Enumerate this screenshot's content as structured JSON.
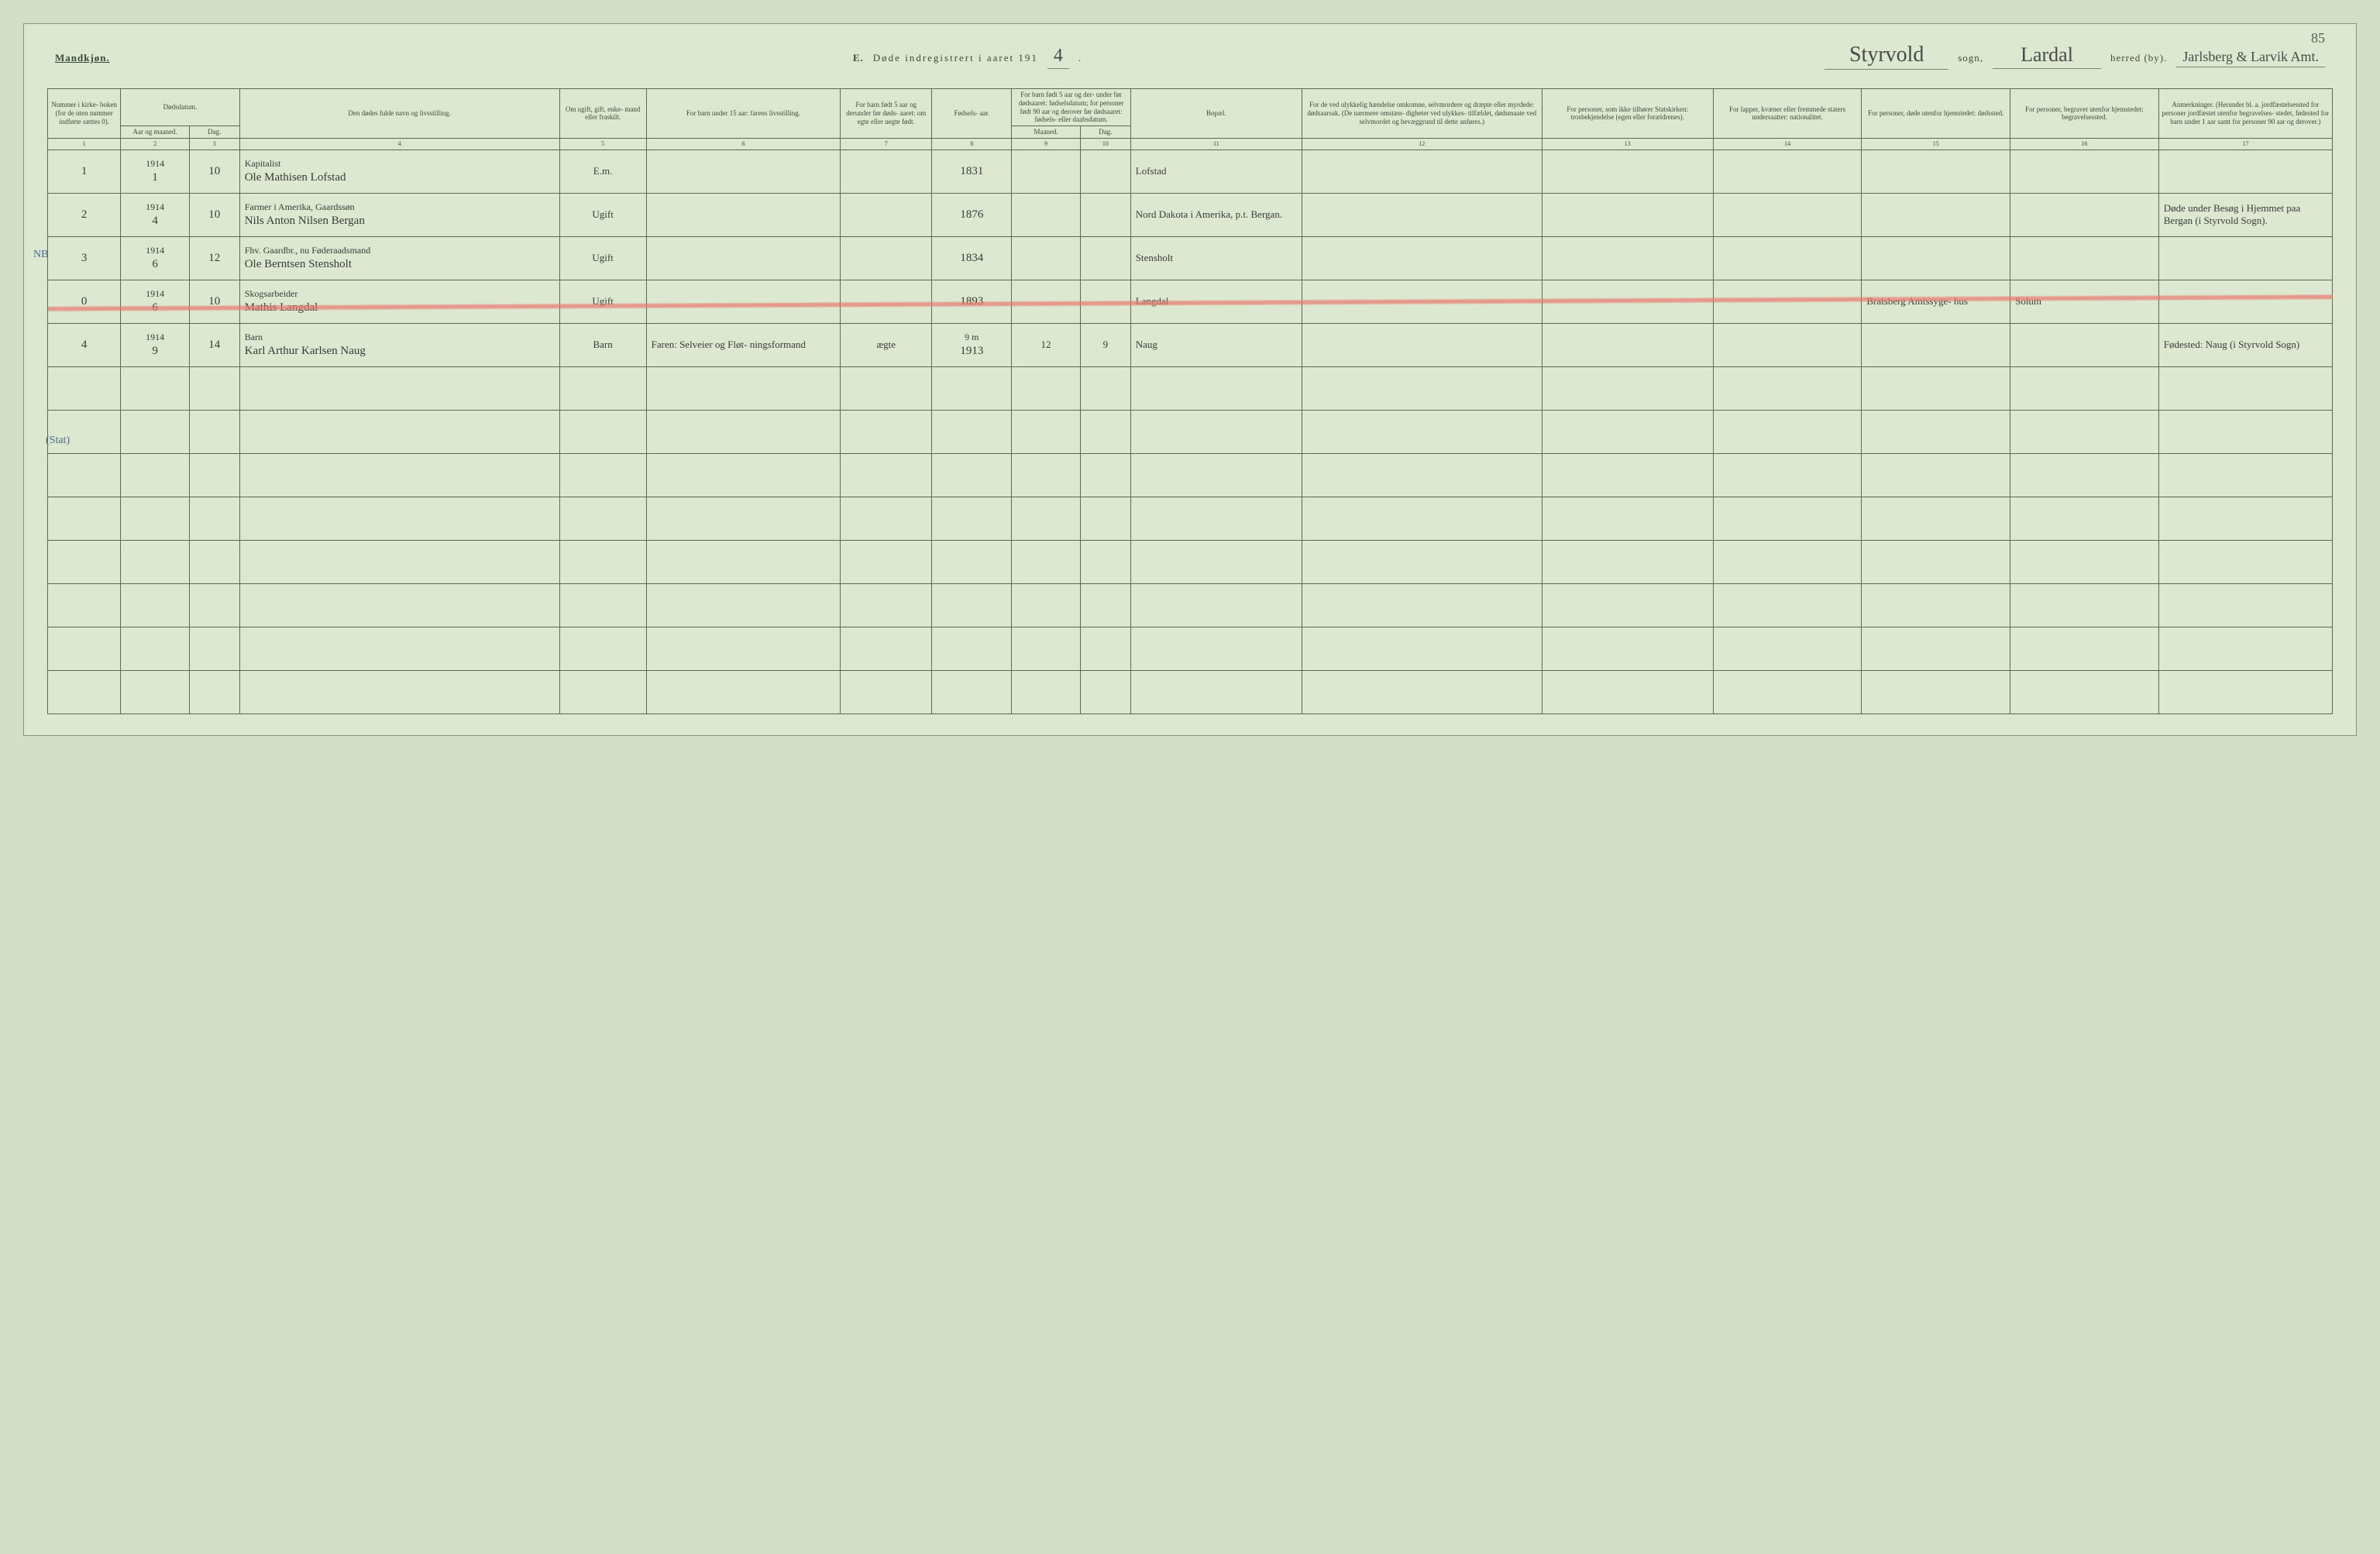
{
  "page_number_top": "85",
  "header": {
    "gender_label": "Mandkjøn.",
    "section_letter": "E.",
    "title_prefix": "Døde indregistrert i aaret 191",
    "year_suffix": "4",
    "title_period": ".",
    "sogn_value": "Styrvold",
    "sogn_label": "sogn,",
    "herred_value": "Lardal",
    "herred_label": "herred (by).",
    "amt_value": "Jarlsberg & Larvik Amt."
  },
  "columns": {
    "c1": "Nummer i kirke- boken (for de uten nummer indførte sættes 0).",
    "c2_group": "Dødsdatum.",
    "c2a": "Aar og maaned.",
    "c2b": "Dag.",
    "c3": "Den dødes fulde navn og livsstilling.",
    "c4": "Om ugift, gift, enke- mand eller fraskilt.",
    "c5": "For barn under 15 aar: farens livsstilling.",
    "c6": "For barn født 5 aar og derunder før døds- aaret: om egte eller uegte født.",
    "c7": "Fødsels- aar.",
    "c8_group": "For barn født 5 aar og der- under før dødsaaret: fødselsdatum; for personer født 90 aar og derover før dødsaaret: fødsels- eller daabsdatum.",
    "c8a": "Maaned.",
    "c8b": "Dag.",
    "c9": "Bopæl.",
    "c10": "For de ved ulykkelig hændelse omkomne, selvmordere og dræpte eller myrdede: dødsaarsak. (De nærmere omstæn- digheter ved ulykkes- tilfældet, dødsmaate ved selvmordet og bevæggrund til dette anføres.)",
    "c11": "For personer, som ikke tilhører Statskirken: trosbekjendelse (egen eller forældrenes).",
    "c12": "For lapper, kvæner eller fremmede staters undersaatter: nationalitet.",
    "c13": "For personer, døde utenfor hjemstedet: dødssted.",
    "c14": "For personer, begravet utenfor hjemstedet: begravelsessted.",
    "c15": "Anmerkninger. (Herunder bl. a. jordfæstelsessted for personer jordfæstet utenfor begravelses- stedet, fødested for barn under 1 aar samt for personer 90 aar og derover.)"
  },
  "colnums": [
    "1",
    "2",
    "3",
    "4",
    "5",
    "6",
    "7",
    "8",
    "9",
    "10",
    "11",
    "12",
    "13",
    "14",
    "15",
    "16",
    "17"
  ],
  "rows": [
    {
      "num": "1",
      "year": "1914",
      "month": "1",
      "day": "10",
      "occupation": "Kapitalist",
      "name": "Ole Mathisen Lofstad",
      "status": "E.m.",
      "father": "",
      "legit": "",
      "birthyear": "1831",
      "bm": "",
      "bd": "",
      "residence": "Lofstad",
      "cause": "",
      "faith": "",
      "nat": "",
      "deathplace": "",
      "burial": "",
      "remarks": ""
    },
    {
      "num": "2",
      "year": "1914",
      "month": "4",
      "day": "10",
      "occupation": "Farmer i Amerika, Gaardssøn",
      "name": "Nils Anton Nilsen Bergan",
      "status": "Ugift",
      "father": "",
      "legit": "",
      "birthyear": "1876",
      "bm": "",
      "bd": "",
      "residence": "Nord Dakota i Amerika, p.t. Bergan.",
      "cause": "",
      "faith": "",
      "nat": "",
      "deathplace": "",
      "burial": "",
      "remarks": "Døde under Besøg i Hjemmet paa Bergan (i Styrvold Sogn)."
    },
    {
      "num": "3",
      "year": "1914",
      "month": "6",
      "day": "12",
      "occupation": "Fhv. Gaardbr., nu Føderaadsmand",
      "name": "Ole Berntsen Stensholt",
      "status": "Ugift",
      "father": "",
      "legit": "",
      "birthyear": "1834",
      "bm": "",
      "bd": "",
      "residence": "Stensholt",
      "cause": "",
      "faith": "",
      "nat": "",
      "deathplace": "",
      "burial": "",
      "remarks": ""
    },
    {
      "num": "0",
      "year": "1914",
      "month": "6",
      "day": "10",
      "occupation": "Skogsarbeider",
      "name": "Mathis Langdal",
      "status": "Ugift",
      "father": "",
      "legit": "",
      "birthyear": "1893",
      "bm": "",
      "bd": "",
      "residence": "Langdal",
      "cause": "",
      "faith": "",
      "nat": "",
      "deathplace": "Bratsberg Amtssyge- hus",
      "burial": "Solum",
      "remarks": "",
      "struck": true
    },
    {
      "num": "4",
      "year": "1914",
      "month": "9",
      "day": "14",
      "occupation": "Barn",
      "name": "Karl Arthur Karlsen Naug",
      "status": "Barn",
      "father": "Faren: Selveier og Fløt- ningsformand",
      "legit": "ægte",
      "birthyear": "1913",
      "bm": "12",
      "bd": "9",
      "age_note": "9 m",
      "residence": "Naug",
      "cause": "",
      "faith": "",
      "nat": "",
      "deathplace": "",
      "burial": "",
      "remarks": "Fødested: Naug (i Styrvold Sogn)"
    }
  ],
  "empty_row_count": 8,
  "margin_notes": {
    "nb": "NB",
    "stat": "(Stat)"
  },
  "colors": {
    "page_bg": "#dde8d0",
    "body_bg": "#d4dfc7",
    "rule": "#5a6a4a",
    "ink": "#3a3a3a",
    "print": "#3a4a3a",
    "strike": "#e8786e",
    "blue_pencil": "#4a6a8a"
  },
  "col_widths_pct": [
    3.2,
    3.0,
    2.2,
    14.0,
    3.8,
    8.5,
    4.0,
    3.5,
    3.0,
    2.2,
    7.5,
    10.5,
    7.5,
    6.5,
    6.5,
    6.5,
    7.6
  ]
}
